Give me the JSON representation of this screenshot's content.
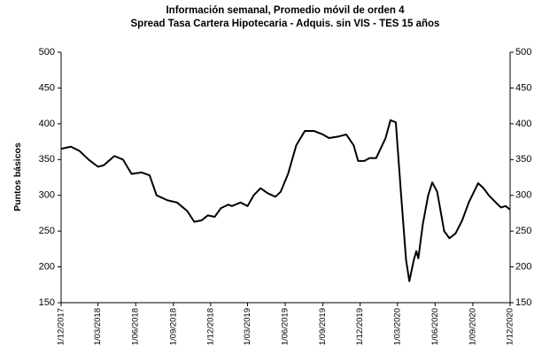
{
  "chart_data": {
    "type": "line",
    "title": "Información semanal, Promedio móvil de orden 4",
    "subtitle": "Spread Tasa Cartera Hipotecaria - Adquis. sin VIS -  TES 15 años",
    "ylabel": "Puntos básicos",
    "x": [
      "2017-12-01",
      "2017-12-25",
      "2018-01-15",
      "2018-02-06",
      "2018-03-01",
      "2018-03-15",
      "2018-04-10",
      "2018-05-01",
      "2018-05-22",
      "2018-06-15",
      "2018-07-05",
      "2018-07-22",
      "2018-08-18",
      "2018-09-10",
      "2018-10-05",
      "2018-10-22",
      "2018-11-09",
      "2018-11-24",
      "2018-12-11",
      "2018-12-26",
      "2019-01-13",
      "2019-01-22",
      "2019-02-12",
      "2019-03-01",
      "2019-03-16",
      "2019-04-02",
      "2019-04-19",
      "2019-05-08",
      "2019-05-21",
      "2019-06-08",
      "2019-06-28",
      "2019-07-19",
      "2019-08-10",
      "2019-09-01",
      "2019-09-16",
      "2019-10-07",
      "2019-10-28",
      "2019-11-15",
      "2019-11-26",
      "2019-12-11",
      "2019-12-24",
      "2020-01-09",
      "2020-02-01",
      "2020-02-13",
      "2020-02-26",
      "2020-03-10",
      "2020-03-22",
      "2020-03-30",
      "2020-04-10",
      "2020-04-16",
      "2020-04-21",
      "2020-05-02",
      "2020-05-15",
      "2020-05-25",
      "2020-06-06",
      "2020-06-23",
      "2020-07-06",
      "2020-07-21",
      "2020-08-06",
      "2020-08-22",
      "2020-09-14",
      "2020-09-27",
      "2020-10-10",
      "2020-10-27",
      "2020-11-09",
      "2020-11-20",
      "2020-12-01"
    ],
    "series": [
      {
        "color": "#000000",
        "values": [
          365,
          368,
          362,
          350,
          340,
          342,
          355,
          350,
          330,
          332,
          328,
          300,
          293,
          290,
          278,
          263,
          265,
          272,
          270,
          282,
          287,
          285,
          290,
          285,
          300,
          310,
          303,
          298,
          305,
          330,
          370,
          390,
          390,
          385,
          380,
          382,
          385,
          370,
          348,
          348,
          352,
          352,
          380,
          405,
          402,
          300,
          210,
          180,
          210,
          222,
          212,
          260,
          300,
          318,
          305,
          250,
          240,
          247,
          265,
          290,
          317,
          310,
          300,
          290,
          283,
          285,
          280
        ]
      }
    ],
    "xlim": [
      "2017-12-01",
      "2020-12-01"
    ],
    "xticks": [
      {
        "value": "2017-12-01",
        "label": "1/12/2017"
      },
      {
        "value": "2018-03-01",
        "label": "1/03/2018"
      },
      {
        "value": "2018-06-01",
        "label": "1/06/2018"
      },
      {
        "value": "2018-09-01",
        "label": "1/09/2018"
      },
      {
        "value": "2018-12-01",
        "label": "1/12/2018"
      },
      {
        "value": "2019-03-01",
        "label": "1/03/2019"
      },
      {
        "value": "2019-06-01",
        "label": "1/06/2019"
      },
      {
        "value": "2019-09-01",
        "label": "1/09/2019"
      },
      {
        "value": "2019-12-01",
        "label": "1/12/2019"
      },
      {
        "value": "2020-03-01",
        "label": "1/03/2020"
      },
      {
        "value": "2020-06-01",
        "label": "1/06/2020"
      },
      {
        "value": "2020-09-01",
        "label": "1/09/2020"
      },
      {
        "value": "2020-12-01",
        "label": "1/12/2020"
      }
    ],
    "ylim": [
      150,
      500
    ],
    "yticks": [
      150,
      200,
      250,
      300,
      350,
      400,
      450,
      500
    ],
    "y2lim": [
      150,
      500
    ],
    "y2ticks": [
      150,
      200,
      250,
      300,
      350,
      400,
      450,
      500
    ],
    "grid": false
  }
}
